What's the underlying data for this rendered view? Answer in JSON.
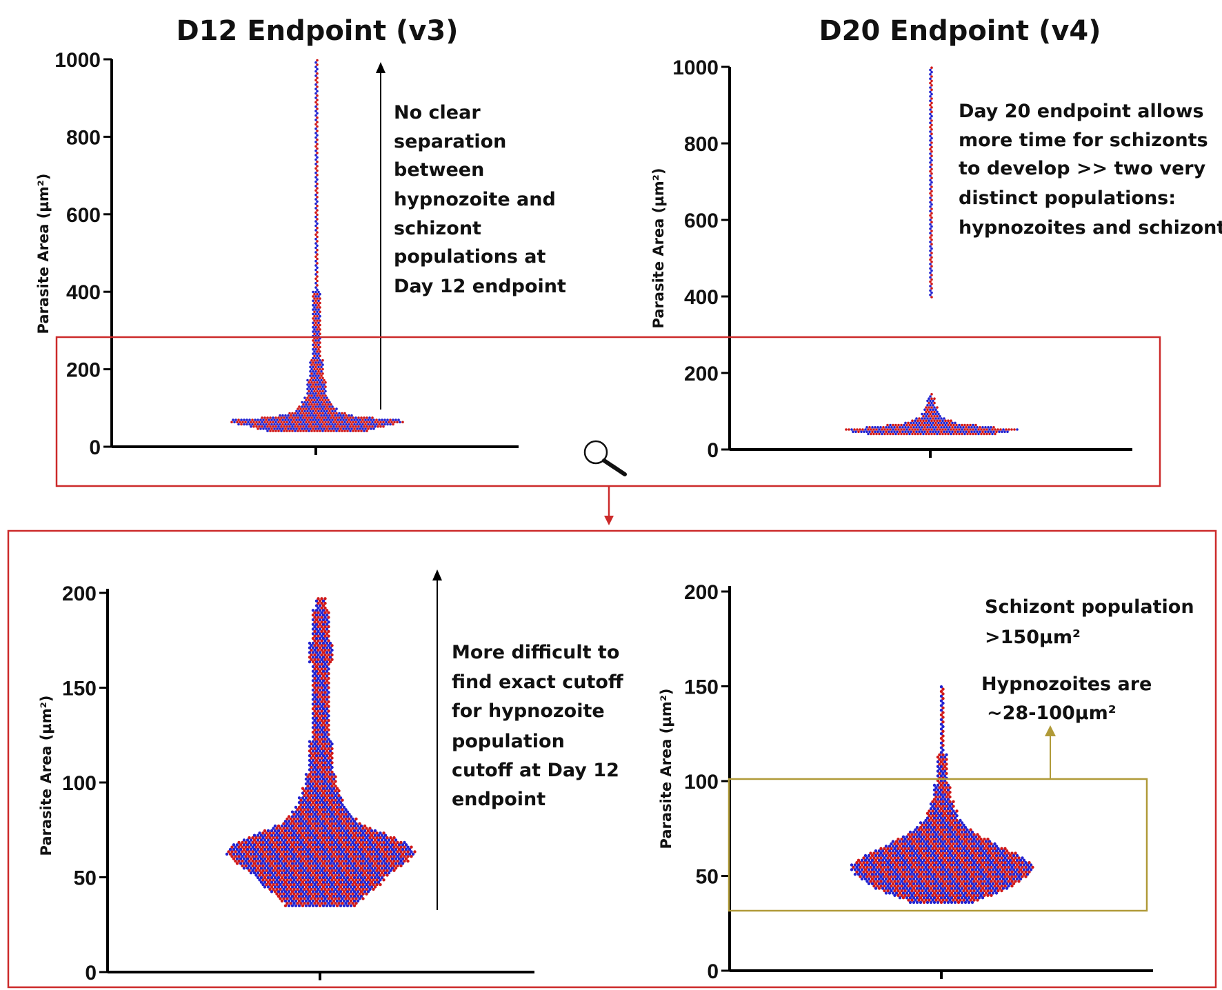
{
  "figure": {
    "colors": {
      "series_a": "#d01818",
      "series_b": "#2222d0",
      "frame": "#cc2a2a",
      "highlight": "#b09a38",
      "axis": "#000000"
    },
    "icons": [
      "magnifier-icon",
      "arrow-down-icon"
    ]
  },
  "chart_data": [
    {
      "id": "d12-full",
      "type": "scatter",
      "subtype": "beeswarm",
      "title": "D12 Endpoint (v3)",
      "ylabel": "Parasite Area (µm²)",
      "ylim": [
        0,
        1000
      ],
      "yticks": [
        0,
        200,
        400,
        600,
        800,
        1000
      ],
      "series_colors": [
        "#d01818",
        "#2222d0"
      ],
      "distribution": [
        {
          "y": 35,
          "halfwidth": 55
        },
        {
          "y": 45,
          "halfwidth": 85
        },
        {
          "y": 55,
          "halfwidth": 105
        },
        {
          "y": 62,
          "halfwidth": 128
        },
        {
          "y": 70,
          "halfwidth": 120
        },
        {
          "y": 78,
          "halfwidth": 60
        },
        {
          "y": 90,
          "halfwidth": 32
        },
        {
          "y": 110,
          "halfwidth": 22
        },
        {
          "y": 130,
          "halfwidth": 16
        },
        {
          "y": 160,
          "halfwidth": 14
        },
        {
          "y": 200,
          "halfwidth": 9
        },
        {
          "y": 300,
          "halfwidth": 5
        },
        {
          "y": 400,
          "halfwidth": 4
        },
        {
          "y": 600,
          "halfwidth": 3
        },
        {
          "y": 800,
          "halfwidth": 2
        },
        {
          "y": 1000,
          "halfwidth": 1
        }
      ],
      "annotation": "No clear separation between hypnozoite and schizont populations at Day 12 endpoint",
      "annotation_lines": [
        "No clear",
        "separation",
        "between",
        "hypnozoite and",
        "schizont",
        "populations at",
        "Day 12 endpoint"
      ]
    },
    {
      "id": "d20-full",
      "type": "scatter",
      "subtype": "beeswarm",
      "title": "D20 Endpoint (v4)",
      "ylabel": "Parasite Area (µm²)",
      "ylim": [
        0,
        1000
      ],
      "yticks": [
        0,
        200,
        400,
        600,
        800,
        1000
      ],
      "series_colors": [
        "#d01818",
        "#2222d0"
      ],
      "distribution": [
        {
          "y": 35,
          "halfwidth": 65
        },
        {
          "y": 42,
          "halfwidth": 100
        },
        {
          "y": 52,
          "halfwidth": 128
        },
        {
          "y": 60,
          "halfwidth": 85
        },
        {
          "y": 70,
          "halfwidth": 38
        },
        {
          "y": 85,
          "halfwidth": 16
        },
        {
          "y": 105,
          "halfwidth": 9
        },
        {
          "y": 130,
          "halfwidth": 5
        },
        {
          "y": 150,
          "halfwidth": 2
        },
        {
          "y": 395,
          "halfwidth": 0
        },
        {
          "y": 420,
          "halfwidth": 3
        },
        {
          "y": 1000,
          "halfwidth": 2
        }
      ],
      "gap": [
        150,
        395
      ],
      "annotation": "Day 20 endpoint allows more time for schizonts to develop >> two very distinct populations: hypnozoites and schizonts",
      "annotation_lines": [
        "Day 20 endpoint allows",
        "more time for schizonts",
        "to develop >> two very",
        "distinct populations:",
        "hypnozoites and schizonts"
      ]
    },
    {
      "id": "d12-zoom",
      "type": "scatter",
      "subtype": "beeswarm",
      "ylabel": "Parasite Area (µm²)",
      "ylim": [
        0,
        200
      ],
      "yticks": [
        0,
        50,
        100,
        150,
        200
      ],
      "series_colors": [
        "#d01818",
        "#2222d0"
      ],
      "distribution": [
        {
          "y": 35,
          "halfwidth": 50
        },
        {
          "y": 40,
          "halfwidth": 65
        },
        {
          "y": 45,
          "halfwidth": 85
        },
        {
          "y": 50,
          "halfwidth": 95
        },
        {
          "y": 55,
          "halfwidth": 115
        },
        {
          "y": 60,
          "halfwidth": 130
        },
        {
          "y": 63,
          "halfwidth": 138
        },
        {
          "y": 68,
          "halfwidth": 125
        },
        {
          "y": 72,
          "halfwidth": 100
        },
        {
          "y": 76,
          "halfwidth": 70
        },
        {
          "y": 80,
          "halfwidth": 52
        },
        {
          "y": 85,
          "halfwidth": 40
        },
        {
          "y": 90,
          "halfwidth": 32
        },
        {
          "y": 100,
          "halfwidth": 22
        },
        {
          "y": 115,
          "halfwidth": 16
        },
        {
          "y": 130,
          "halfwidth": 14
        },
        {
          "y": 155,
          "halfwidth": 14
        },
        {
          "y": 170,
          "halfwidth": 16
        },
        {
          "y": 185,
          "halfwidth": 12
        },
        {
          "y": 198,
          "halfwidth": 8
        }
      ],
      "annotation": "More difficult to find exact cutoff for hypnozoite population cutoff at Day 12 endpoint",
      "annotation_lines": [
        "More difficult to",
        "find exact cutoff",
        "for hypnozoite",
        "population",
        "cutoff at Day 12",
        "endpoint"
      ]
    },
    {
      "id": "d20-zoom",
      "type": "scatter",
      "subtype": "beeswarm",
      "ylabel": "Parasite Area (µm²)",
      "ylim": [
        0,
        200
      ],
      "yticks": [
        0,
        50,
        100,
        150,
        200
      ],
      "series_colors": [
        "#d01818",
        "#2222d0"
      ],
      "distribution": [
        {
          "y": 36,
          "halfwidth": 45
        },
        {
          "y": 40,
          "halfwidth": 75
        },
        {
          "y": 45,
          "halfwidth": 105
        },
        {
          "y": 50,
          "halfwidth": 125
        },
        {
          "y": 55,
          "halfwidth": 135
        },
        {
          "y": 60,
          "halfwidth": 118
        },
        {
          "y": 65,
          "halfwidth": 88
        },
        {
          "y": 70,
          "halfwidth": 62
        },
        {
          "y": 75,
          "halfwidth": 38
        },
        {
          "y": 80,
          "halfwidth": 25
        },
        {
          "y": 90,
          "halfwidth": 15
        },
        {
          "y": 100,
          "halfwidth": 9
        },
        {
          "y": 115,
          "halfwidth": 5
        },
        {
          "y": 130,
          "halfwidth": 3
        },
        {
          "y": 150,
          "halfwidth": 1
        }
      ],
      "highlight_range": [
        31,
        100
      ],
      "annotation_schizont": "Schizont population >150µm²",
      "annotation_schizont_lines": [
        "Schizont population",
        ">150µm²"
      ],
      "annotation_hypnozoite": "Hypnozoites are ~28-100µm²",
      "annotation_hypnozoite_lines": [
        "Hypnozoites are",
        "~28-100µm²"
      ]
    }
  ]
}
